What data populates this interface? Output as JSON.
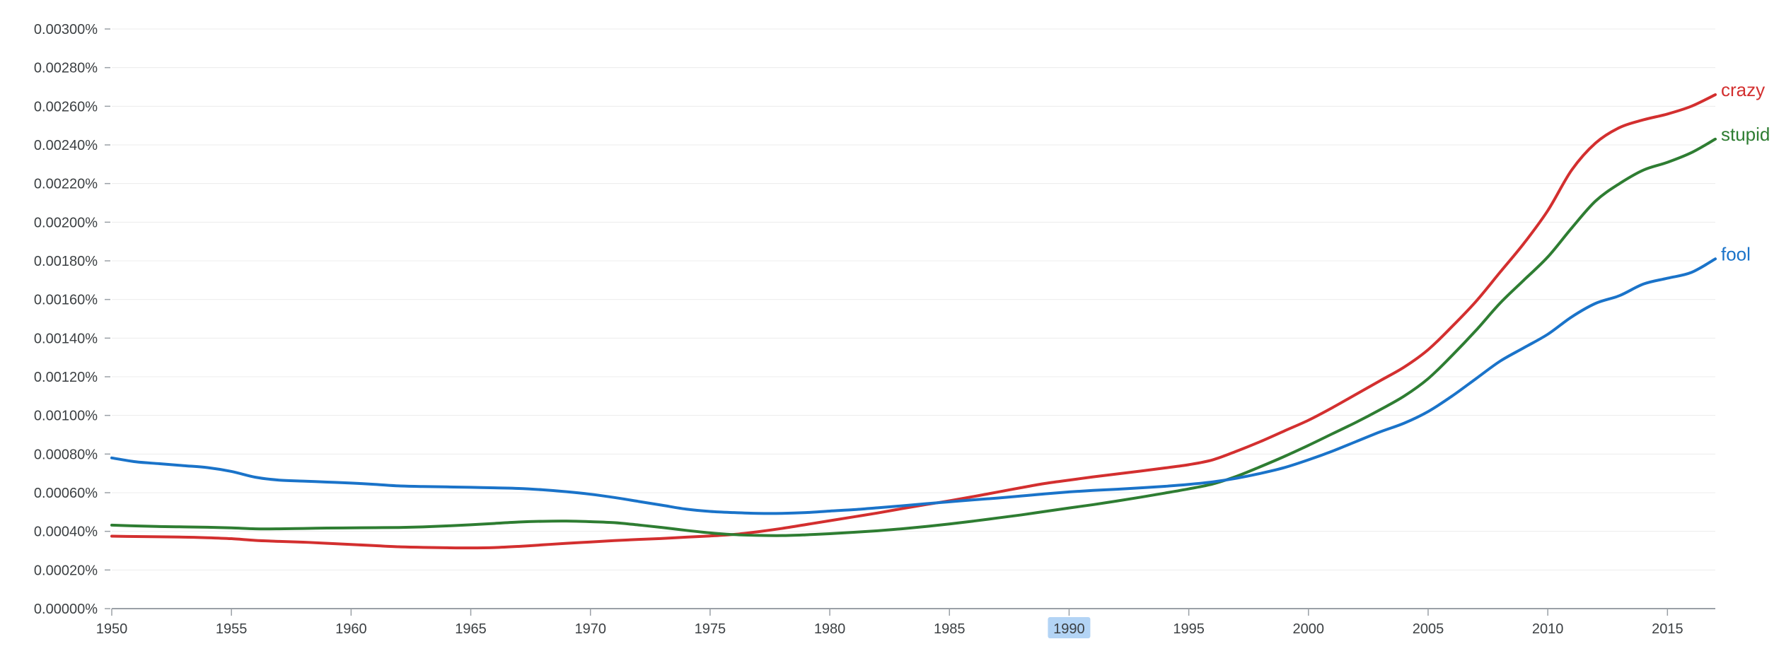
{
  "chart_data": {
    "type": "line",
    "x": [
      1950,
      1951,
      1952,
      1953,
      1954,
      1955,
      1956,
      1957,
      1958,
      1959,
      1960,
      1961,
      1962,
      1963,
      1964,
      1965,
      1966,
      1967,
      1968,
      1969,
      1970,
      1971,
      1972,
      1973,
      1974,
      1975,
      1976,
      1977,
      1978,
      1979,
      1980,
      1981,
      1982,
      1983,
      1984,
      1985,
      1986,
      1987,
      1988,
      1989,
      1990,
      1991,
      1992,
      1993,
      1994,
      1995,
      1996,
      1997,
      1998,
      1999,
      2000,
      2001,
      2002,
      2003,
      2004,
      2005,
      2006,
      2007,
      2008,
      2009,
      2010,
      2011,
      2012,
      2013,
      2014,
      2015,
      2016,
      2017
    ],
    "series": [
      {
        "name": "crazy",
        "color": "#d32f2f",
        "values": [
          0.000375,
          0.000373,
          0.000372,
          0.00037,
          0.000367,
          0.000362,
          0.000353,
          0.000348,
          0.000344,
          0.000338,
          0.000332,
          0.000326,
          0.00032,
          0.000317,
          0.000315,
          0.000314,
          0.000316,
          0.000322,
          0.00033,
          0.000338,
          0.000345,
          0.000352,
          0.000358,
          0.000363,
          0.00037,
          0.000376,
          0.000384,
          0.000398,
          0.000415,
          0.000435,
          0.000455,
          0.000475,
          0.000495,
          0.000517,
          0.000538,
          0.000558,
          0.00058,
          0.000603,
          0.000626,
          0.000648,
          0.000665,
          0.000682,
          0.000697,
          0.000712,
          0.000728,
          0.000745,
          0.00077,
          0.000815,
          0.000865,
          0.00092,
          0.000975,
          0.00104,
          0.00111,
          0.00118,
          0.00125,
          0.00134,
          0.00146,
          0.00159,
          0.00174,
          0.00189,
          0.00206,
          0.00227,
          0.00241,
          0.00249,
          0.00253,
          0.00256,
          0.0026,
          0.00266
        ]
      },
      {
        "name": "stupid",
        "color": "#2e7d32",
        "values": [
          0.000432,
          0.000428,
          0.000425,
          0.000423,
          0.000421,
          0.000418,
          0.000413,
          0.000413,
          0.000415,
          0.000417,
          0.000418,
          0.000419,
          0.00042,
          0.000423,
          0.000428,
          0.000434,
          0.000441,
          0.000448,
          0.000452,
          0.000453,
          0.00045,
          0.000445,
          0.000433,
          0.00042,
          0.000405,
          0.000392,
          0.000383,
          0.000379,
          0.000378,
          0.000382,
          0.000388,
          0.000395,
          0.000403,
          0.000413,
          0.000425,
          0.000438,
          0.000453,
          0.000469,
          0.000485,
          0.000503,
          0.000521,
          0.000538,
          0.000557,
          0.000577,
          0.000598,
          0.00062,
          0.000645,
          0.000685,
          0.000735,
          0.000788,
          0.000845,
          0.000905,
          0.000965,
          0.00103,
          0.0011,
          0.00119,
          0.00131,
          0.00144,
          0.00158,
          0.0017,
          0.00182,
          0.00197,
          0.00211,
          0.0022,
          0.00227,
          0.00231,
          0.00236,
          0.00243
        ]
      },
      {
        "name": "fool",
        "color": "#1a73c9",
        "values": [
          0.00078,
          0.00076,
          0.00075,
          0.00074,
          0.00073,
          0.00071,
          0.00068,
          0.000665,
          0.00066,
          0.000655,
          0.00065,
          0.000643,
          0.000635,
          0.000632,
          0.00063,
          0.000628,
          0.000625,
          0.000622,
          0.000615,
          0.000605,
          0.000592,
          0.000575,
          0.000555,
          0.000535,
          0.000515,
          0.000503,
          0.000497,
          0.000493,
          0.000493,
          0.000497,
          0.000505,
          0.000512,
          0.000522,
          0.000532,
          0.000543,
          0.000553,
          0.000563,
          0.000572,
          0.000583,
          0.000594,
          0.000604,
          0.000612,
          0.000618,
          0.000625,
          0.000633,
          0.000643,
          0.000656,
          0.000675,
          0.0007,
          0.00073,
          0.00077,
          0.000815,
          0.000865,
          0.000915,
          0.00096,
          0.00102,
          0.0011,
          0.00119,
          0.00128,
          0.00135,
          0.00142,
          0.00151,
          0.00158,
          0.00162,
          0.00168,
          0.00171,
          0.00174,
          0.00181
        ]
      }
    ],
    "y_ticks": [
      "0.00000%",
      "0.00020%",
      "0.00040%",
      "0.00060%",
      "0.00080%",
      "0.00100%",
      "0.00120%",
      "0.00140%",
      "0.00160%",
      "0.00180%",
      "0.00200%",
      "0.00220%",
      "0.00240%",
      "0.00260%",
      "0.00280%",
      "0.00300%"
    ],
    "x_ticks": [
      "1950",
      "1955",
      "1960",
      "1965",
      "1970",
      "1975",
      "1980",
      "1985",
      "1990",
      "1995",
      "2000",
      "2005",
      "2010",
      "2015"
    ],
    "highlighted_x_tick": "1990",
    "highlight_color": "#b3d4f5",
    "xlim": [
      1950,
      2017
    ],
    "ylim": [
      0,
      0.003
    ],
    "grid": true,
    "legend": "inline at line ends (right)"
  }
}
